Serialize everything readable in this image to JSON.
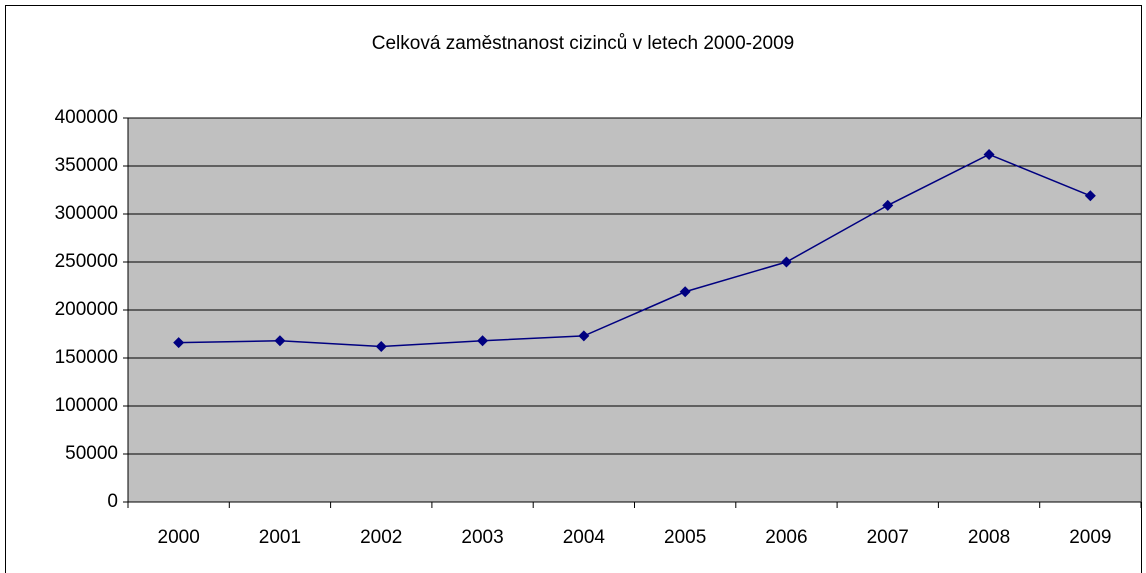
{
  "chart_data": {
    "type": "line",
    "title": "Celková zaměstnanost cizinců v letech 2000-2009",
    "categories": [
      "2000",
      "2001",
      "2002",
      "2003",
      "2004",
      "2005",
      "2006",
      "2007",
      "2008",
      "2009"
    ],
    "series": [
      {
        "color": "#000080",
        "values": [
          166000,
          168000,
          162000,
          168000,
          173000,
          219000,
          250000,
          309000,
          362000,
          319000
        ]
      }
    ],
    "ylim": [
      0,
      400000
    ],
    "yticks": [
      0,
      50000,
      100000,
      150000,
      200000,
      250000,
      300000,
      350000,
      400000
    ],
    "grid": true
  }
}
